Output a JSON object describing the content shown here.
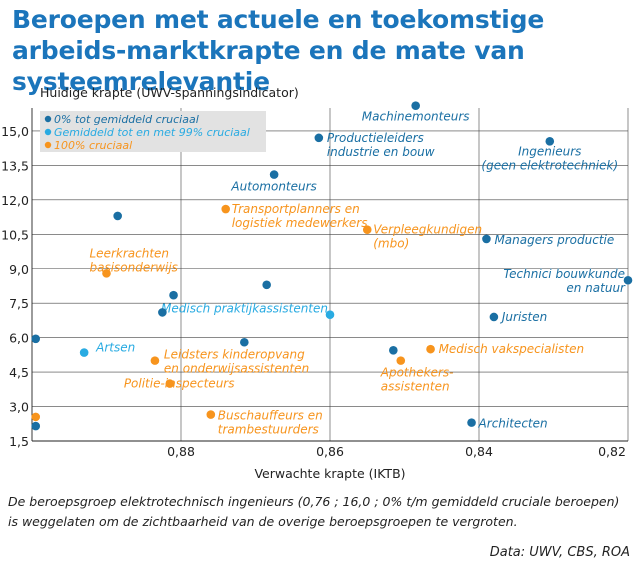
{
  "title": "Beroepen met actuele en toekomstige arbeids-marktkrapte en de mate van systeemrelevantie",
  "footnote": "De beroepsgroep elektrotechnisch ingenieurs (0,76 ; 16,0 ; 0% t/m gemiddeld cruciale beroepen) is weggelaten om de zichtbaarheid van de overige beroepsgroepen te vergroten.",
  "source": "Data: UWV, CBS, ROA",
  "colors": {
    "dark_blue": "#1a6fa3",
    "light_blue": "#29abe2",
    "orange": "#f7941d",
    "title_blue": "#1b75bb"
  },
  "chart_data": {
    "type": "scatter",
    "ylabel": "Huidige krapte (UWV-spanningsindicator)",
    "xlabel": "Verwachte krapte (IKTB)",
    "x_reversed": true,
    "xlim": [
      0.9,
      0.82
    ],
    "ylim": [
      1.5,
      16.0
    ],
    "xticks": [
      0.88,
      0.86,
      0.84,
      0.82
    ],
    "xtick_labels": [
      "0,88",
      "0,86",
      "0,84",
      "0,82"
    ],
    "yticks": [
      1.5,
      3.0,
      4.5,
      6.0,
      7.5,
      9.0,
      10.5,
      12.0,
      13.5,
      15.0
    ],
    "ytick_labels": [
      "1,5",
      "3,0",
      "4,5",
      "6,0",
      "7,5",
      "9,0",
      "10,5",
      "12,0",
      "13,5",
      "15,0"
    ],
    "grid": true,
    "legend": {
      "position": "top-left",
      "entries": [
        {
          "label": "0% tot gemiddeld cruciaal",
          "color": "#1a6fa3"
        },
        {
          "label": "Gemiddeld tot en met 99% cruciaal",
          "color": "#29abe2"
        },
        {
          "label": "100% cruciaal",
          "color": "#f7941d"
        }
      ]
    },
    "series": [
      {
        "name": "0% tot gemiddeld cruciaal",
        "color": "#1a6fa3",
        "points": [
          {
            "x": 0.8485,
            "y": 16.1,
            "label": "Machinemonteurs"
          },
          {
            "x": 0.8305,
            "y": 14.55,
            "label": "Ingenieurs\n(geen elektrotechniek)"
          },
          {
            "x": 0.8615,
            "y": 14.7,
            "label": "Productieleiders\nindustrie en bouw"
          },
          {
            "x": 0.8675,
            "y": 13.1,
            "label": "Automonteurs"
          },
          {
            "x": 0.839,
            "y": 10.3,
            "label": "Managers productie"
          },
          {
            "x": 0.82,
            "y": 8.5,
            "label": "Technici bouwkunde\nen natuur"
          },
          {
            "x": 0.838,
            "y": 6.9,
            "label": "Juristen"
          },
          {
            "x": 0.841,
            "y": 2.3,
            "label": "Architecten"
          },
          {
            "x": 0.8515,
            "y": 5.45,
            "label": ""
          },
          {
            "x": 0.8885,
            "y": 11.3,
            "label": ""
          },
          {
            "x": 0.881,
            "y": 7.85,
            "label": ""
          },
          {
            "x": 0.8825,
            "y": 7.1,
            "label": ""
          },
          {
            "x": 0.8685,
            "y": 8.3,
            "label": ""
          },
          {
            "x": 0.8715,
            "y": 5.8,
            "label": ""
          },
          {
            "x": 0.8995,
            "y": 5.95,
            "label": ""
          },
          {
            "x": 0.8995,
            "y": 2.15,
            "label": ""
          }
        ]
      },
      {
        "name": "Gemiddeld tot en met 99% cruciaal",
        "color": "#29abe2",
        "points": [
          {
            "x": 0.86,
            "y": 7.0,
            "label": "Medisch praktijkassistenten"
          },
          {
            "x": 0.893,
            "y": 5.35,
            "label": "Artsen"
          }
        ]
      },
      {
        "name": "100% cruciaal",
        "color": "#f7941d",
        "points": [
          {
            "x": 0.874,
            "y": 11.6,
            "label": "Transportplanners en\nlogistiek medewerkers"
          },
          {
            "x": 0.855,
            "y": 10.7,
            "label": "Verpleegkundigen\n(mbo)"
          },
          {
            "x": 0.89,
            "y": 8.8,
            "label": "Leerkrachten\nbasisonderwijs"
          },
          {
            "x": 0.8835,
            "y": 5.0,
            "label": "Leidsters kinderopvang\nen onderwijsassistenten"
          },
          {
            "x": 0.8465,
            "y": 5.5,
            "label": "Medisch vakspecialisten"
          },
          {
            "x": 0.8505,
            "y": 5.0,
            "label": "Apothekers-\nassistenten"
          },
          {
            "x": 0.8815,
            "y": 4.0,
            "label": "Politie-inspecteurs"
          },
          {
            "x": 0.876,
            "y": 2.65,
            "label": "Buschauffeurs en\ntrambestuurders"
          },
          {
            "x": 0.8995,
            "y": 2.55,
            "label": ""
          }
        ]
      }
    ]
  }
}
